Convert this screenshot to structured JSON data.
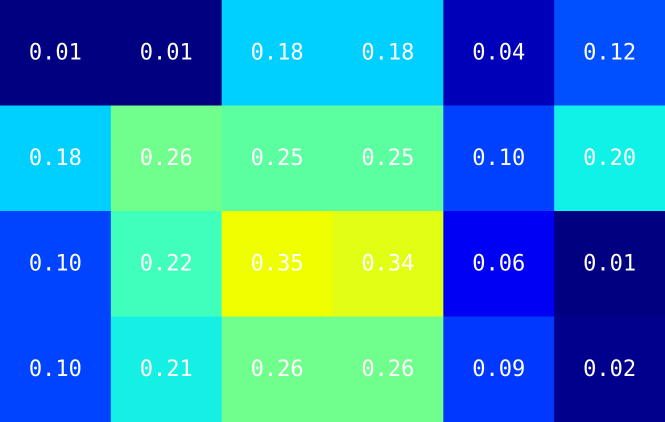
{
  "chart_data": {
    "type": "heatmap",
    "title": "",
    "xlabel": "",
    "ylabel": "",
    "colormap": "jet",
    "value_range": [
      0.0,
      0.36
    ],
    "rows": 4,
    "cols": 6,
    "values": [
      [
        0.01,
        0.01,
        0.18,
        0.18,
        0.04,
        0.12
      ],
      [
        0.18,
        0.26,
        0.25,
        0.25,
        0.1,
        0.2
      ],
      [
        0.1,
        0.22,
        0.35,
        0.34,
        0.06,
        0.01
      ],
      [
        0.1,
        0.21,
        0.26,
        0.26,
        0.09,
        0.02
      ]
    ],
    "labels": [
      [
        "0.01",
        "0.01",
        "0.18",
        "0.18",
        "0.04",
        "0.12"
      ],
      [
        "0.18",
        "0.26",
        "0.25",
        "0.25",
        "0.10",
        "0.20"
      ],
      [
        "0.10",
        "0.22",
        "0.35",
        "0.34",
        "0.06",
        "0.01"
      ],
      [
        "0.10",
        "0.21",
        "0.26",
        "0.26",
        "0.09",
        "0.02"
      ]
    ],
    "cell_colors": [
      [
        "#000080",
        "#000080",
        "#00d0ff",
        "#00d0ff",
        "#0000b8",
        "#0050ff"
      ],
      [
        "#00d0ff",
        "#70ff8c",
        "#5cffa0",
        "#5cffa0",
        "#0040ff",
        "#10f2e8"
      ],
      [
        "#0044ff",
        "#40ffbc",
        "#f0ff00",
        "#e0ff14",
        "#0000f4",
        "#000080"
      ],
      [
        "#0044ff",
        "#16f0e4",
        "#70ff8c",
        "#70ff8c",
        "#0038ff",
        "#00008c"
      ]
    ],
    "text_color": "#ffffff"
  }
}
